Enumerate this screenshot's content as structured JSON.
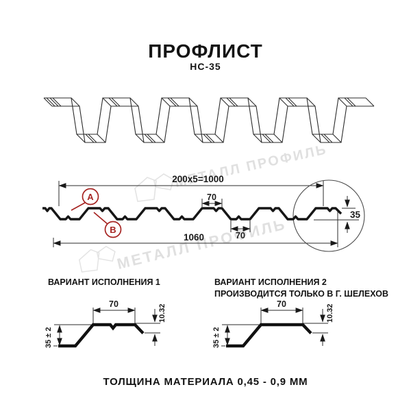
{
  "header": {
    "title": "ПРОФЛИСТ",
    "subtitle": "НС-35"
  },
  "watermark": {
    "text": "МЕТАЛЛ ПРОФИЛЬ",
    "color": "#e0e0e0"
  },
  "cross_section": {
    "dim_pitch": "200x5=1000",
    "dim_top_flange": "70",
    "dim_bottom_flange": "70",
    "dim_overall_width": "1060",
    "dim_height": "35",
    "label_a": "А",
    "label_b": "В",
    "accent_color": "#a62422"
  },
  "variants": [
    {
      "title": "ВАРИАНТ ИСПОЛНЕНИЯ 1",
      "subtitle": "",
      "dim_width": "70",
      "dim_lip": "10.32",
      "dim_height": "35 ± 2"
    },
    {
      "title": "ВАРИАНТ ИСПОЛНЕНИЯ 2",
      "subtitle": "ПРОИЗВОДИТСЯ ТОЛЬКО В Г. ШЕЛЕХОВ",
      "dim_width": "70",
      "dim_lip": "10.32",
      "dim_height": "35 ± 2"
    }
  ],
  "footer": {
    "note": "ТОЛЩИНА МАТЕРИАЛА 0,45 - 0,9 ММ"
  }
}
